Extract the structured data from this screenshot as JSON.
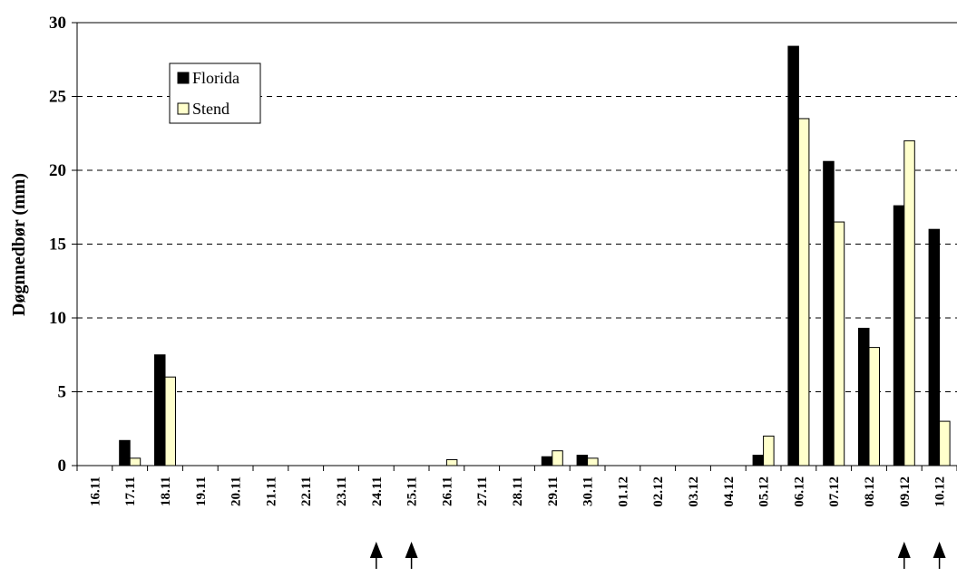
{
  "chart_data": {
    "type": "bar",
    "title": "",
    "xlabel": "",
    "ylabel": "Døgnnedbør (mm)",
    "ylim": [
      0,
      30
    ],
    "yticks": [
      0,
      5,
      10,
      15,
      20,
      25,
      30
    ],
    "grid": "horizontal dashed",
    "legend_position": "top-left",
    "categories": [
      "16.11",
      "17.11",
      "18.11",
      "19.11",
      "20.11",
      "21.11",
      "22.11",
      "23.11",
      "24.11",
      "25.11",
      "26.11",
      "27.11",
      "28.11",
      "29.11",
      "30.11",
      "01.12",
      "02.12",
      "03.12",
      "04.12",
      "05.12",
      "06.12",
      "07.12",
      "08.12",
      "09.12",
      "10.12"
    ],
    "series": [
      {
        "name": "Florida",
        "color": "#000000",
        "values": [
          0,
          1.7,
          7.5,
          0,
          0,
          0,
          0,
          0,
          0,
          0,
          0,
          0,
          0,
          0.6,
          0.7,
          0,
          0,
          0,
          0,
          0.7,
          28.4,
          20.6,
          9.3,
          17.6,
          16.0
        ]
      },
      {
        "name": "Stend",
        "color": "#ffffcc",
        "values": [
          0,
          0.5,
          6.0,
          0,
          0,
          0,
          0,
          0,
          0,
          0,
          0.4,
          0,
          0,
          1.0,
          0.5,
          0,
          0,
          0,
          0,
          2.0,
          23.5,
          16.5,
          8.0,
          22.0,
          3.0
        ]
      }
    ],
    "arrow_markers": [
      "24.11",
      "25.11",
      "09.12",
      "10.12"
    ]
  }
}
